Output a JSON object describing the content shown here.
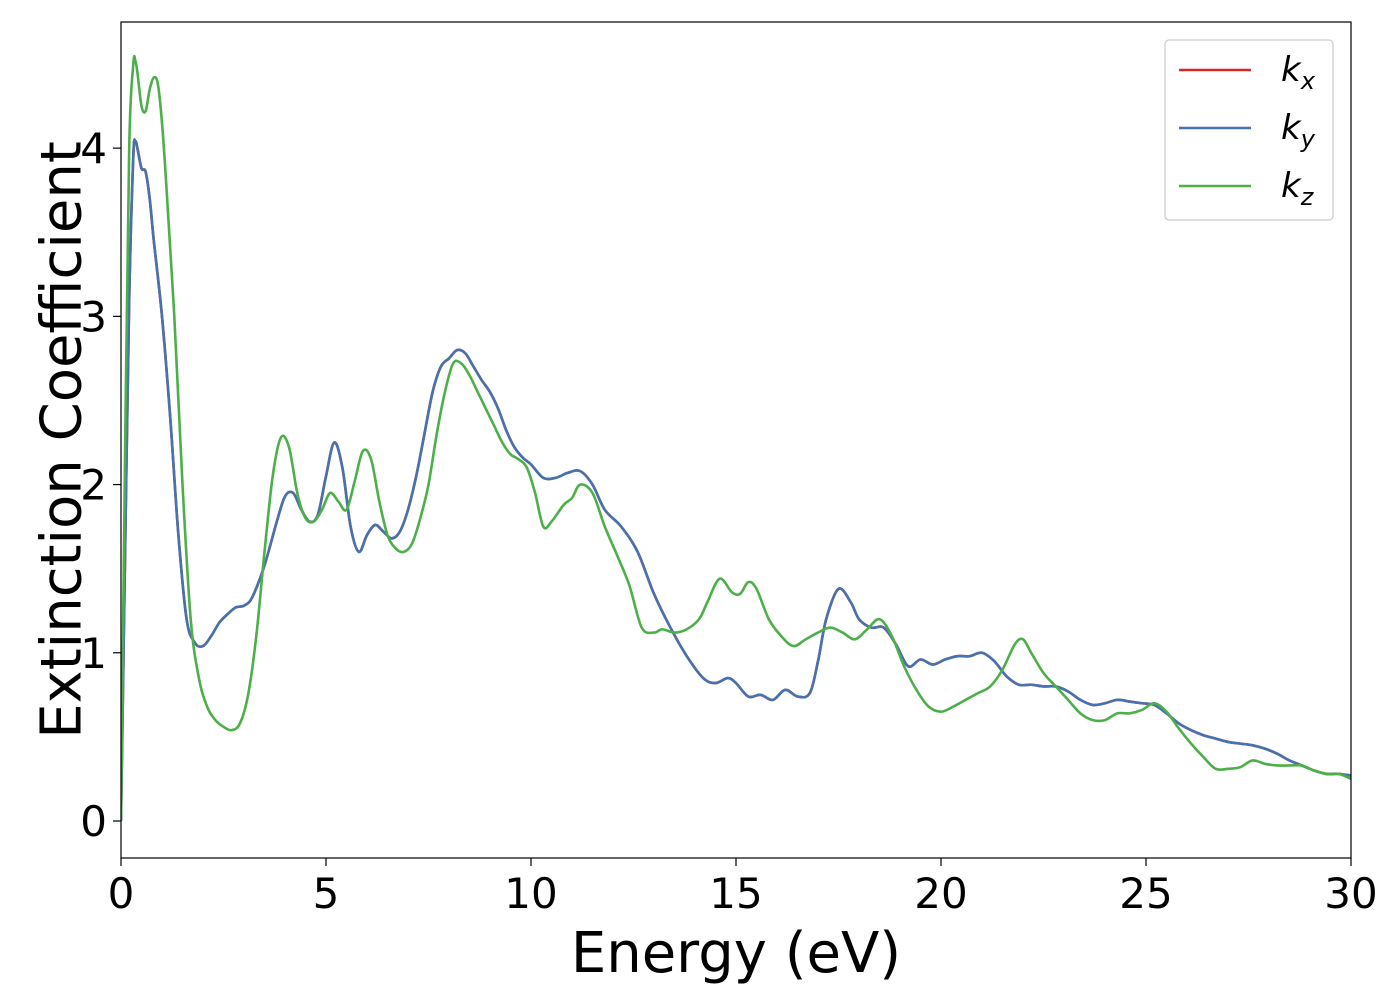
{
  "chart_data": {
    "type": "line",
    "xlabel": "Energy (eV)",
    "ylabel": "Extinction Coefficient",
    "xlim": [
      0,
      30
    ],
    "ylim": [
      -0.22,
      4.75
    ],
    "xticks": [
      0,
      5,
      10,
      15,
      20,
      25,
      30
    ],
    "yticks": [
      0,
      1,
      2,
      3,
      4
    ],
    "xtick_labels": [
      "0",
      "5",
      "10",
      "15",
      "20",
      "25",
      "30"
    ],
    "ytick_labels": [
      "0",
      "1",
      "2",
      "3",
      "4"
    ],
    "grid": false,
    "legend_position": "top-right",
    "series": [
      {
        "name": "k_x",
        "label_main": "k",
        "label_sub": "x",
        "color": "#d62728",
        "x": [
          0,
          0.1,
          0.2,
          0.3,
          0.35,
          0.4,
          0.5,
          0.6,
          0.7,
          0.8,
          1.0,
          1.2,
          1.4,
          1.6,
          1.8,
          2.0,
          2.2,
          2.4,
          2.6,
          2.8,
          3.0,
          3.2,
          3.5,
          3.8,
          4.0,
          4.2,
          4.4,
          4.6,
          4.8,
          5.0,
          5.2,
          5.4,
          5.6,
          5.8,
          6.0,
          6.2,
          6.4,
          6.6,
          6.8,
          7.0,
          7.2,
          7.4,
          7.6,
          7.8,
          8.0,
          8.2,
          8.4,
          8.6,
          8.8,
          9.0,
          9.2,
          9.4,
          9.6,
          9.8,
          10.0,
          10.3,
          10.6,
          10.9,
          11.2,
          11.5,
          11.8,
          12.2,
          12.6,
          13.0,
          13.4,
          13.8,
          14.2,
          14.5,
          14.8,
          15.0,
          15.3,
          15.6,
          15.9,
          16.2,
          16.5,
          16.8,
          17.0,
          17.2,
          17.5,
          17.8,
          18.0,
          18.3,
          18.6,
          18.9,
          19.2,
          19.5,
          19.8,
          20.1,
          20.4,
          20.7,
          21.0,
          21.3,
          21.6,
          21.9,
          22.2,
          22.5,
          22.8,
          23.1,
          23.4,
          23.7,
          24.0,
          24.3,
          24.6,
          24.9,
          25.2,
          25.5,
          25.8,
          26.1,
          26.4,
          26.7,
          27.0,
          27.3,
          27.6,
          27.9,
          28.2,
          28.5,
          28.8,
          29.1,
          29.4,
          29.7,
          30.0
        ],
        "y": [
          0,
          1.6,
          3.1,
          3.95,
          4.04,
          4.0,
          3.88,
          3.86,
          3.7,
          3.45,
          3.0,
          2.4,
          1.7,
          1.2,
          1.06,
          1.04,
          1.1,
          1.18,
          1.23,
          1.27,
          1.28,
          1.33,
          1.52,
          1.78,
          1.93,
          1.95,
          1.85,
          1.78,
          1.82,
          2.05,
          2.25,
          2.1,
          1.75,
          1.6,
          1.7,
          1.76,
          1.72,
          1.68,
          1.72,
          1.85,
          2.05,
          2.3,
          2.55,
          2.7,
          2.75,
          2.8,
          2.78,
          2.7,
          2.62,
          2.55,
          2.45,
          2.32,
          2.22,
          2.16,
          2.12,
          2.04,
          2.04,
          2.07,
          2.08,
          2.0,
          1.85,
          1.75,
          1.6,
          1.35,
          1.15,
          0.98,
          0.85,
          0.82,
          0.85,
          0.82,
          0.74,
          0.75,
          0.72,
          0.78,
          0.74,
          0.76,
          0.95,
          1.2,
          1.38,
          1.3,
          1.2,
          1.15,
          1.15,
          1.05,
          0.92,
          0.96,
          0.93,
          0.96,
          0.98,
          0.98,
          1.0,
          0.95,
          0.86,
          0.81,
          0.81,
          0.8,
          0.8,
          0.77,
          0.72,
          0.69,
          0.7,
          0.72,
          0.71,
          0.7,
          0.69,
          0.64,
          0.58,
          0.54,
          0.51,
          0.49,
          0.47,
          0.46,
          0.45,
          0.43,
          0.4,
          0.36,
          0.33,
          0.3,
          0.28,
          0.28,
          0.27
        ]
      },
      {
        "name": "k_y",
        "label_main": "k",
        "label_sub": "y",
        "color": "#4572b0",
        "x": [
          0,
          0.1,
          0.2,
          0.3,
          0.35,
          0.4,
          0.5,
          0.6,
          0.7,
          0.8,
          1.0,
          1.2,
          1.4,
          1.6,
          1.8,
          2.0,
          2.2,
          2.4,
          2.6,
          2.8,
          3.0,
          3.2,
          3.5,
          3.8,
          4.0,
          4.2,
          4.4,
          4.6,
          4.8,
          5.0,
          5.2,
          5.4,
          5.6,
          5.8,
          6.0,
          6.2,
          6.4,
          6.6,
          6.8,
          7.0,
          7.2,
          7.4,
          7.6,
          7.8,
          8.0,
          8.2,
          8.4,
          8.6,
          8.8,
          9.0,
          9.2,
          9.4,
          9.6,
          9.8,
          10.0,
          10.3,
          10.6,
          10.9,
          11.2,
          11.5,
          11.8,
          12.2,
          12.6,
          13.0,
          13.4,
          13.8,
          14.2,
          14.5,
          14.8,
          15.0,
          15.3,
          15.6,
          15.9,
          16.2,
          16.5,
          16.8,
          17.0,
          17.2,
          17.5,
          17.8,
          18.0,
          18.3,
          18.6,
          18.9,
          19.2,
          19.5,
          19.8,
          20.1,
          20.4,
          20.7,
          21.0,
          21.3,
          21.6,
          21.9,
          22.2,
          22.5,
          22.8,
          23.1,
          23.4,
          23.7,
          24.0,
          24.3,
          24.6,
          24.9,
          25.2,
          25.5,
          25.8,
          26.1,
          26.4,
          26.7,
          27.0,
          27.3,
          27.6,
          27.9,
          28.2,
          28.5,
          28.8,
          29.1,
          29.4,
          29.7,
          30.0
        ],
        "y": [
          0,
          1.6,
          3.1,
          3.95,
          4.04,
          4.0,
          3.88,
          3.86,
          3.7,
          3.45,
          3.0,
          2.4,
          1.7,
          1.2,
          1.06,
          1.04,
          1.1,
          1.18,
          1.23,
          1.27,
          1.28,
          1.33,
          1.52,
          1.78,
          1.93,
          1.95,
          1.85,
          1.78,
          1.82,
          2.05,
          2.25,
          2.1,
          1.75,
          1.6,
          1.7,
          1.76,
          1.72,
          1.68,
          1.72,
          1.85,
          2.05,
          2.3,
          2.55,
          2.7,
          2.75,
          2.8,
          2.78,
          2.7,
          2.62,
          2.55,
          2.45,
          2.32,
          2.22,
          2.16,
          2.12,
          2.04,
          2.04,
          2.07,
          2.08,
          2.0,
          1.85,
          1.75,
          1.6,
          1.35,
          1.15,
          0.98,
          0.85,
          0.82,
          0.85,
          0.82,
          0.74,
          0.75,
          0.72,
          0.78,
          0.74,
          0.76,
          0.95,
          1.2,
          1.38,
          1.3,
          1.2,
          1.15,
          1.15,
          1.05,
          0.92,
          0.96,
          0.93,
          0.96,
          0.98,
          0.98,
          1.0,
          0.95,
          0.86,
          0.81,
          0.81,
          0.8,
          0.8,
          0.77,
          0.72,
          0.69,
          0.7,
          0.72,
          0.71,
          0.7,
          0.69,
          0.64,
          0.58,
          0.54,
          0.51,
          0.49,
          0.47,
          0.46,
          0.45,
          0.43,
          0.4,
          0.36,
          0.33,
          0.3,
          0.28,
          0.28,
          0.27
        ]
      },
      {
        "name": "k_z",
        "label_main": "k",
        "label_sub": "z",
        "color": "#4daf4a",
        "x": [
          0,
          0.1,
          0.2,
          0.3,
          0.35,
          0.4,
          0.5,
          0.6,
          0.7,
          0.8,
          0.9,
          1.0,
          1.1,
          1.3,
          1.5,
          1.7,
          1.9,
          2.1,
          2.3,
          2.5,
          2.7,
          2.9,
          3.1,
          3.3,
          3.5,
          3.7,
          3.9,
          4.1,
          4.3,
          4.5,
          4.7,
          4.9,
          5.1,
          5.3,
          5.5,
          5.7,
          5.9,
          6.1,
          6.3,
          6.5,
          6.7,
          6.9,
          7.1,
          7.3,
          7.5,
          7.7,
          7.9,
          8.1,
          8.3,
          8.5,
          8.7,
          8.9,
          9.1,
          9.3,
          9.5,
          9.7,
          9.9,
          10.1,
          10.3,
          10.5,
          10.8,
          11.0,
          11.2,
          11.5,
          11.8,
          12.1,
          12.4,
          12.7,
          13.0,
          13.2,
          13.5,
          13.8,
          14.1,
          14.3,
          14.6,
          14.9,
          15.1,
          15.3,
          15.5,
          15.8,
          16.1,
          16.4,
          16.7,
          17.0,
          17.3,
          17.6,
          17.9,
          18.2,
          18.5,
          18.8,
          19.1,
          19.4,
          19.7,
          20.0,
          20.3,
          20.6,
          20.9,
          21.2,
          21.5,
          21.8,
          22.0,
          22.2,
          22.5,
          22.8,
          23.1,
          23.4,
          23.7,
          24.0,
          24.3,
          24.6,
          24.9,
          25.2,
          25.5,
          25.8,
          26.1,
          26.4,
          26.7,
          27.0,
          27.3,
          27.6,
          27.9,
          28.2,
          28.5,
          28.8,
          29.1,
          29.4,
          29.7,
          30.0
        ],
        "y": [
          0,
          2.2,
          4.0,
          4.5,
          4.52,
          4.45,
          4.25,
          4.22,
          4.35,
          4.42,
          4.38,
          4.15,
          3.8,
          3.0,
          2.0,
          1.2,
          0.85,
          0.68,
          0.6,
          0.56,
          0.54,
          0.58,
          0.75,
          1.1,
          1.6,
          2.05,
          2.28,
          2.22,
          1.95,
          1.8,
          1.78,
          1.85,
          1.95,
          1.9,
          1.85,
          2.02,
          2.2,
          2.15,
          1.9,
          1.7,
          1.62,
          1.6,
          1.65,
          1.8,
          2.0,
          2.3,
          2.55,
          2.72,
          2.72,
          2.65,
          2.55,
          2.45,
          2.35,
          2.25,
          2.18,
          2.15,
          2.1,
          1.95,
          1.75,
          1.78,
          1.88,
          1.92,
          2.0,
          1.95,
          1.75,
          1.58,
          1.4,
          1.15,
          1.12,
          1.14,
          1.12,
          1.14,
          1.2,
          1.3,
          1.44,
          1.36,
          1.35,
          1.42,
          1.38,
          1.2,
          1.1,
          1.04,
          1.08,
          1.12,
          1.15,
          1.12,
          1.08,
          1.14,
          1.2,
          1.1,
          0.92,
          0.78,
          0.68,
          0.65,
          0.68,
          0.72,
          0.76,
          0.8,
          0.9,
          1.05,
          1.08,
          1.0,
          0.88,
          0.8,
          0.72,
          0.64,
          0.6,
          0.6,
          0.64,
          0.64,
          0.66,
          0.7,
          0.65,
          0.55,
          0.46,
          0.38,
          0.31,
          0.31,
          0.32,
          0.36,
          0.34,
          0.33,
          0.33,
          0.33,
          0.3,
          0.28,
          0.28,
          0.25
        ]
      }
    ]
  }
}
